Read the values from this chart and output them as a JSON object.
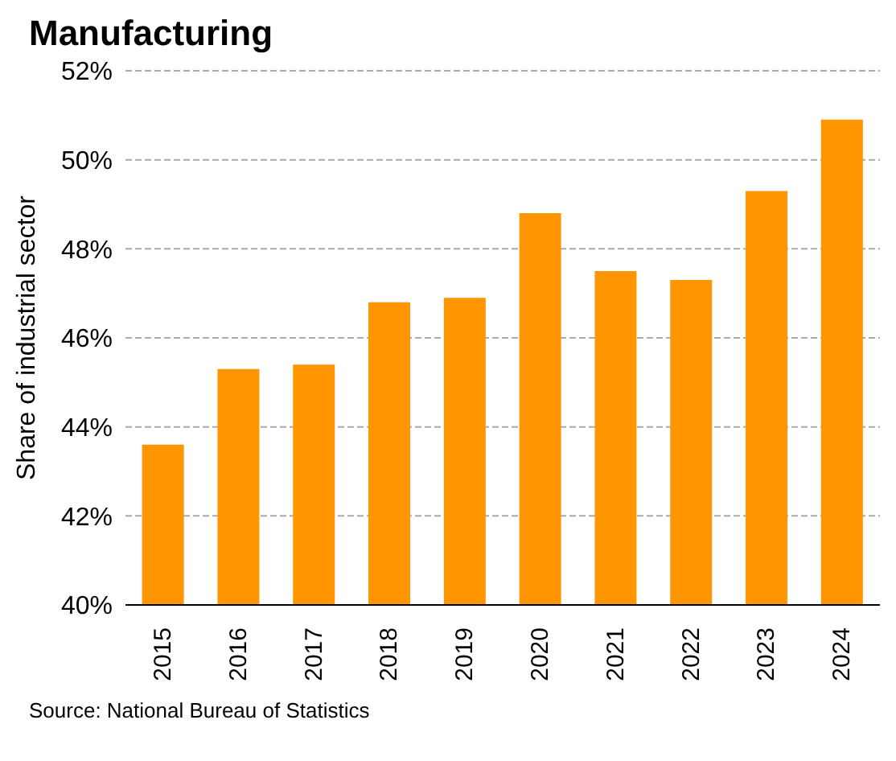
{
  "chart_data": {
    "type": "bar",
    "title": "Manufacturing",
    "ylabel": "Share of industrial sector",
    "categories": [
      "2015",
      "2016",
      "2017",
      "2018",
      "2019",
      "2020",
      "2021",
      "2022",
      "2023",
      "2024"
    ],
    "values": [
      43.6,
      45.3,
      45.4,
      46.8,
      46.9,
      48.8,
      47.5,
      47.3,
      49.3,
      50.9
    ],
    "color": "#ff9500",
    "ylim": [
      40,
      52
    ],
    "yticks": [
      {
        "value": 40,
        "label": "40%"
      },
      {
        "value": 42,
        "label": "42%"
      },
      {
        "value": 44,
        "label": "44%"
      },
      {
        "value": 46,
        "label": "46%"
      },
      {
        "value": 48,
        "label": "48%"
      },
      {
        "value": 50,
        "label": "50%"
      },
      {
        "value": 52,
        "label": "52%"
      }
    ],
    "grid": "y",
    "annotations": [
      "Source: National Bureau of Statistics"
    ]
  }
}
